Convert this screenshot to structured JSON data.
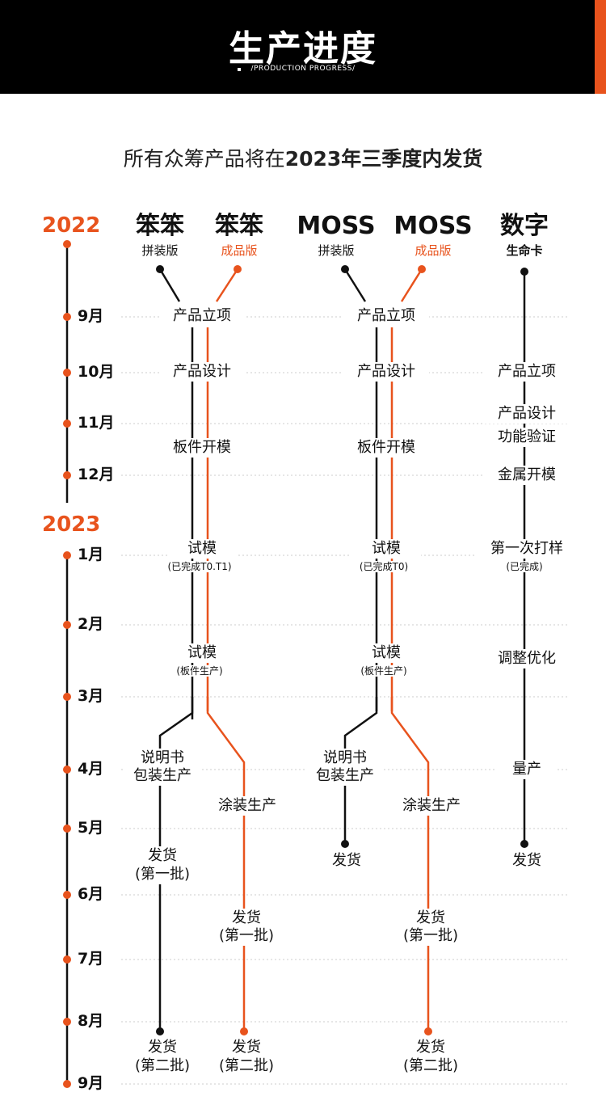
{
  "header": {
    "title": "生产进度",
    "subtitle": "/PRODUCTION PROGRESS/",
    "accent_color": "#e8531d",
    "bg_color": "#000000"
  },
  "intro": {
    "text_prefix": "所有众筹产品将在",
    "text_bold": "2023年三季度内发货"
  },
  "years": [
    "2022",
    "2023"
  ],
  "months": [
    "9月",
    "10月",
    "11月",
    "12月",
    "1月",
    "2月",
    "3月",
    "4月",
    "5月",
    "6月",
    "7月",
    "8月",
    "9月"
  ],
  "columns": [
    {
      "title": "笨笨",
      "sub": "拼装版"
    },
    {
      "title": "笨笨",
      "sub": "成品版"
    },
    {
      "title": "MOSS",
      "sub": "拼装版"
    },
    {
      "title": "MOSS",
      "sub": "成品版"
    },
    {
      "title": "数字",
      "sub": "生命卡"
    }
  ],
  "steps": {
    "benben_start": "产品立项",
    "benben_design": "产品设计",
    "benben_mold": "板件开模",
    "benben_trial1": "试模",
    "benben_trial1_note": "(已完成T0.T1)",
    "benben_trial2": "试模",
    "benben_trial2_note": "(板件生产)",
    "benben_manual_1": "说明书",
    "benben_manual_2": "包装生产",
    "benben_ship1_1": "发货",
    "benben_ship1_2": "(第一批)",
    "benben_ship2_1": "发货",
    "benben_ship2_2": "(第二批)",
    "benben_f_paint": "涂装生产",
    "benben_f_ship1_1": "发货",
    "benben_f_ship1_2": "(第一批)",
    "benben_f_ship2_1": "发货",
    "benben_f_ship2_2": "(第二批)",
    "moss_start": "产品立项",
    "moss_design": "产品设计",
    "moss_mold": "板件开模",
    "moss_trial1": "试模",
    "moss_trial1_note": "(已完成T0)",
    "moss_trial2": "试模",
    "moss_trial2_note": "(板件生产)",
    "moss_manual_1": "说明书",
    "moss_manual_2": "包装生产",
    "moss_ship": "发货",
    "moss_f_paint": "涂装生产",
    "moss_f_ship1_1": "发货",
    "moss_f_ship1_2": "(第一批)",
    "moss_f_ship2_1": "发货",
    "moss_f_ship2_2": "(第二批)",
    "card_start": "产品立项",
    "card_design": "产品设计",
    "card_verify": "功能验证",
    "card_mold": "金属开模",
    "card_sample": "第一次打样",
    "card_sample_note": "(已完成)",
    "card_optimize": "调整优化",
    "card_mass": "量产",
    "card_ship": "发货"
  },
  "colors": {
    "accent": "#e8531d",
    "line_black": "#111111",
    "grid": "#cccccc"
  }
}
